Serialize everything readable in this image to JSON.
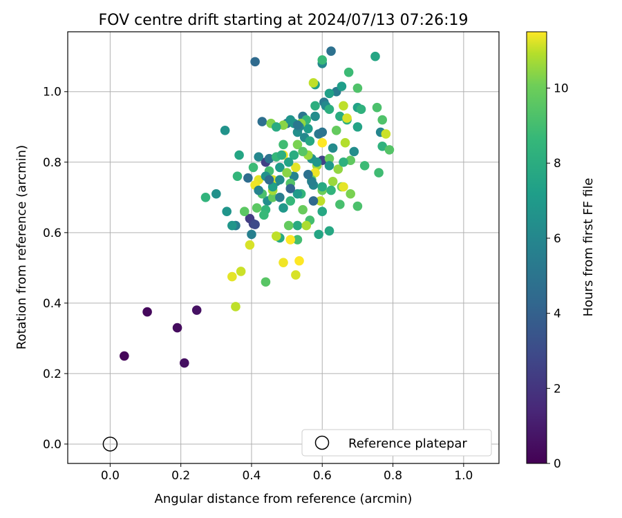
{
  "chart_data": {
    "type": "scatter",
    "title": "FOV centre drift starting at 2024/07/13 07:26:19",
    "xlabel": "Angular distance from reference (arcmin)",
    "ylabel": "Rotation from reference (arcmin)",
    "xlim": [
      -0.12,
      1.1
    ],
    "ylim": [
      -0.055,
      1.17
    ],
    "xticks": [
      0.0,
      0.2,
      0.4,
      0.6,
      0.8,
      1.0
    ],
    "xtick_labels": [
      "0.0",
      "0.2",
      "0.4",
      "0.6",
      "0.8",
      "1.0"
    ],
    "yticks": [
      0.0,
      0.2,
      0.4,
      0.6,
      0.8,
      1.0
    ],
    "ytick_labels": [
      "0.0",
      "0.2",
      "0.4",
      "0.6",
      "0.8",
      "1.0"
    ],
    "grid": true,
    "legend": {
      "placement": "lower-right",
      "entries": [
        {
          "label": "Reference platepar",
          "marker": "open-circle"
        }
      ]
    },
    "reference_point": {
      "x": 0.0,
      "y": 0.0
    },
    "colorbar": {
      "label": "Hours from first FF file",
      "colormap": "viridis",
      "range": [
        0,
        11.5
      ],
      "ticks": [
        0,
        2,
        4,
        6,
        8,
        10
      ],
      "tick_labels": [
        "0",
        "2",
        "4",
        "6",
        "8",
        "10"
      ]
    },
    "points": [
      [
        0.04,
        0.25,
        0.2
      ],
      [
        0.105,
        0.375,
        0.3
      ],
      [
        0.19,
        0.33,
        0.4
      ],
      [
        0.21,
        0.23,
        0.5
      ],
      [
        0.245,
        0.38,
        0.6
      ],
      [
        0.395,
        0.64,
        2.3
      ],
      [
        0.405,
        0.625,
        2.6
      ],
      [
        0.41,
        0.623,
        2.9
      ],
      [
        0.44,
        0.8,
        2.5
      ],
      [
        0.6,
        0.805,
        2.6
      ],
      [
        0.41,
        1.085,
        4.5
      ],
      [
        0.625,
        1.115,
        4.8
      ],
      [
        0.39,
        0.755,
        4.6
      ],
      [
        0.43,
        0.915,
        4.7
      ],
      [
        0.45,
        0.81,
        4.9
      ],
      [
        0.5,
        0.91,
        5.0
      ],
      [
        0.545,
        0.93,
        5.1
      ],
      [
        0.59,
        0.88,
        5.2
      ],
      [
        0.605,
        0.97,
        5.3
      ],
      [
        0.64,
        1.0,
        5.4
      ],
      [
        0.355,
        0.62,
        5.5
      ],
      [
        0.4,
        0.595,
        5.6
      ],
      [
        0.47,
        0.745,
        5.7
      ],
      [
        0.52,
        0.76,
        5.8
      ],
      [
        0.575,
        0.735,
        5.9
      ],
      [
        0.6,
        1.08,
        6.0
      ],
      [
        0.61,
        0.96,
        6.1
      ],
      [
        0.63,
        0.84,
        6.2
      ],
      [
        0.42,
        0.815,
        6.0
      ],
      [
        0.55,
        0.87,
        6.1
      ],
      [
        0.765,
        0.885,
        5.9
      ],
      [
        0.69,
        0.83,
        6.3
      ],
      [
        0.445,
        0.69,
        6.4
      ],
      [
        0.53,
        0.885,
        6.4
      ],
      [
        0.57,
        0.81,
        6.5
      ],
      [
        0.3,
        0.71,
        6.5
      ],
      [
        0.325,
        0.89,
        6.6
      ],
      [
        0.33,
        0.66,
        6.7
      ],
      [
        0.345,
        0.62,
        6.8
      ],
      [
        0.49,
        0.67,
        6.9
      ],
      [
        0.48,
        0.785,
        7.0
      ],
      [
        0.52,
        0.91,
        7.0
      ],
      [
        0.56,
        0.895,
        7.1
      ],
      [
        0.58,
        1.02,
        7.2
      ],
      [
        0.62,
        0.995,
        7.3
      ],
      [
        0.655,
        1.015,
        7.2
      ],
      [
        0.7,
        0.955,
        7.4
      ],
      [
        0.7,
        0.9,
        7.5
      ],
      [
        0.75,
        1.1,
        7.6
      ],
      [
        0.59,
        0.595,
        7.6
      ],
      [
        0.62,
        0.605,
        7.7
      ],
      [
        0.365,
        0.82,
        7.6
      ],
      [
        0.48,
        0.585,
        7.8
      ],
      [
        0.6,
        0.66,
        7.7
      ],
      [
        0.53,
        0.62,
        7.9
      ],
      [
        0.65,
        0.93,
        8.0
      ],
      [
        0.58,
        0.96,
        8.1
      ],
      [
        0.62,
        0.95,
        8.1
      ],
      [
        0.67,
        0.92,
        8.2
      ],
      [
        0.71,
        0.95,
        8.3
      ],
      [
        0.77,
        0.845,
        8.3
      ],
      [
        0.27,
        0.7,
        8.4
      ],
      [
        0.36,
        0.76,
        8.5
      ],
      [
        0.44,
        0.665,
        8.5
      ],
      [
        0.51,
        0.69,
        8.6
      ],
      [
        0.555,
        0.92,
        8.6
      ],
      [
        0.6,
        1.09,
        8.7
      ],
      [
        0.675,
        1.055,
        8.8
      ],
      [
        0.72,
        0.79,
        8.8
      ],
      [
        0.76,
        0.77,
        8.9
      ],
      [
        0.49,
        0.85,
        8.9
      ],
      [
        0.53,
        0.58,
        9.0
      ],
      [
        0.565,
        0.635,
        9.0
      ],
      [
        0.65,
        0.68,
        9.1
      ],
      [
        0.7,
        0.675,
        9.2
      ],
      [
        0.77,
        0.92,
        9.3
      ],
      [
        0.79,
        0.835,
        9.4
      ],
      [
        0.755,
        0.955,
        9.2
      ],
      [
        0.7,
        1.01,
        9.3
      ],
      [
        0.44,
        0.46,
        9.5
      ],
      [
        0.38,
        0.66,
        9.6
      ],
      [
        0.415,
        0.67,
        9.6
      ],
      [
        0.46,
        0.7,
        9.7
      ],
      [
        0.505,
        0.62,
        9.8
      ],
      [
        0.545,
        0.665,
        9.9
      ],
      [
        0.6,
        0.72,
        10.0
      ],
      [
        0.655,
        0.73,
        10.1
      ],
      [
        0.68,
        0.71,
        10.2
      ],
      [
        0.455,
        0.91,
        10.3
      ],
      [
        0.49,
        0.905,
        10.4
      ],
      [
        0.54,
        0.91,
        10.5
      ],
      [
        0.56,
        0.82,
        10.6
      ],
      [
        0.585,
        0.79,
        10.7
      ],
      [
        0.63,
        0.745,
        10.6
      ],
      [
        0.665,
        0.855,
        10.9
      ],
      [
        0.575,
        1.025,
        11.0
      ],
      [
        0.66,
        0.96,
        11.0
      ],
      [
        0.67,
        0.925,
        11.2
      ],
      [
        0.78,
        0.88,
        11.1
      ],
      [
        0.645,
        0.78,
        10.5
      ],
      [
        0.42,
        0.75,
        11.3
      ],
      [
        0.46,
        0.75,
        11.2
      ],
      [
        0.49,
        0.82,
        11.4
      ],
      [
        0.525,
        0.785,
        11.3
      ],
      [
        0.58,
        0.77,
        11.4
      ],
      [
        0.6,
        0.855,
        11.5
      ],
      [
        0.66,
        0.73,
        11.3
      ],
      [
        0.51,
        0.58,
        11.5
      ],
      [
        0.49,
        0.515,
        11.4
      ],
      [
        0.535,
        0.52,
        11.5
      ],
      [
        0.525,
        0.48,
        11.2
      ],
      [
        0.37,
        0.49,
        11.1
      ],
      [
        0.345,
        0.475,
        11.3
      ],
      [
        0.355,
        0.39,
        11.0
      ],
      [
        0.395,
        0.565,
        11.2
      ],
      [
        0.41,
        0.735,
        11.4
      ],
      [
        0.47,
        0.59,
        11.0
      ],
      [
        0.555,
        0.62,
        10.8
      ],
      [
        0.595,
        0.69,
        11.0
      ],
      [
        0.46,
        0.72,
        10.7
      ],
      [
        0.5,
        0.77,
        10.4
      ],
      [
        0.53,
        0.85,
        10.2
      ],
      [
        0.57,
        0.75,
        10.0
      ],
      [
        0.62,
        0.81,
        9.9
      ],
      [
        0.64,
        0.89,
        9.8
      ],
      [
        0.68,
        0.805,
        9.7
      ],
      [
        0.545,
        0.83,
        9.5
      ],
      [
        0.51,
        0.74,
        9.4
      ],
      [
        0.43,
        0.71,
        9.2
      ],
      [
        0.45,
        0.775,
        9.0
      ],
      [
        0.405,
        0.785,
        8.8
      ],
      [
        0.435,
        0.65,
        8.7
      ],
      [
        0.47,
        0.815,
        8.6
      ],
      [
        0.54,
        0.71,
        8.5
      ],
      [
        0.625,
        0.72,
        8.4
      ],
      [
        0.66,
        0.8,
        8.2
      ],
      [
        0.485,
        0.82,
        8.1
      ],
      [
        0.52,
        0.82,
        8.0
      ],
      [
        0.47,
        0.9,
        7.9
      ],
      [
        0.6,
        0.73,
        7.8
      ],
      [
        0.565,
        0.86,
        7.7
      ],
      [
        0.505,
        0.8,
        7.5
      ],
      [
        0.46,
        0.73,
        7.3
      ],
      [
        0.53,
        0.71,
        7.0
      ],
      [
        0.62,
        0.79,
        6.9
      ],
      [
        0.585,
        0.8,
        6.8
      ],
      [
        0.51,
        0.92,
        6.7
      ],
      [
        0.44,
        0.76,
        6.5
      ],
      [
        0.58,
        0.93,
        6.3
      ],
      [
        0.48,
        0.75,
        6.2
      ],
      [
        0.535,
        0.9,
        6.0
      ],
      [
        0.42,
        0.72,
        5.8
      ],
      [
        0.57,
        0.745,
        5.6
      ],
      [
        0.48,
        0.7,
        5.4
      ],
      [
        0.53,
        0.905,
        5.2
      ],
      [
        0.6,
        0.885,
        5.0
      ],
      [
        0.56,
        0.765,
        4.8
      ],
      [
        0.45,
        0.75,
        4.6
      ],
      [
        0.575,
        0.69,
        4.4
      ],
      [
        0.51,
        0.725,
        4.2
      ]
    ]
  }
}
